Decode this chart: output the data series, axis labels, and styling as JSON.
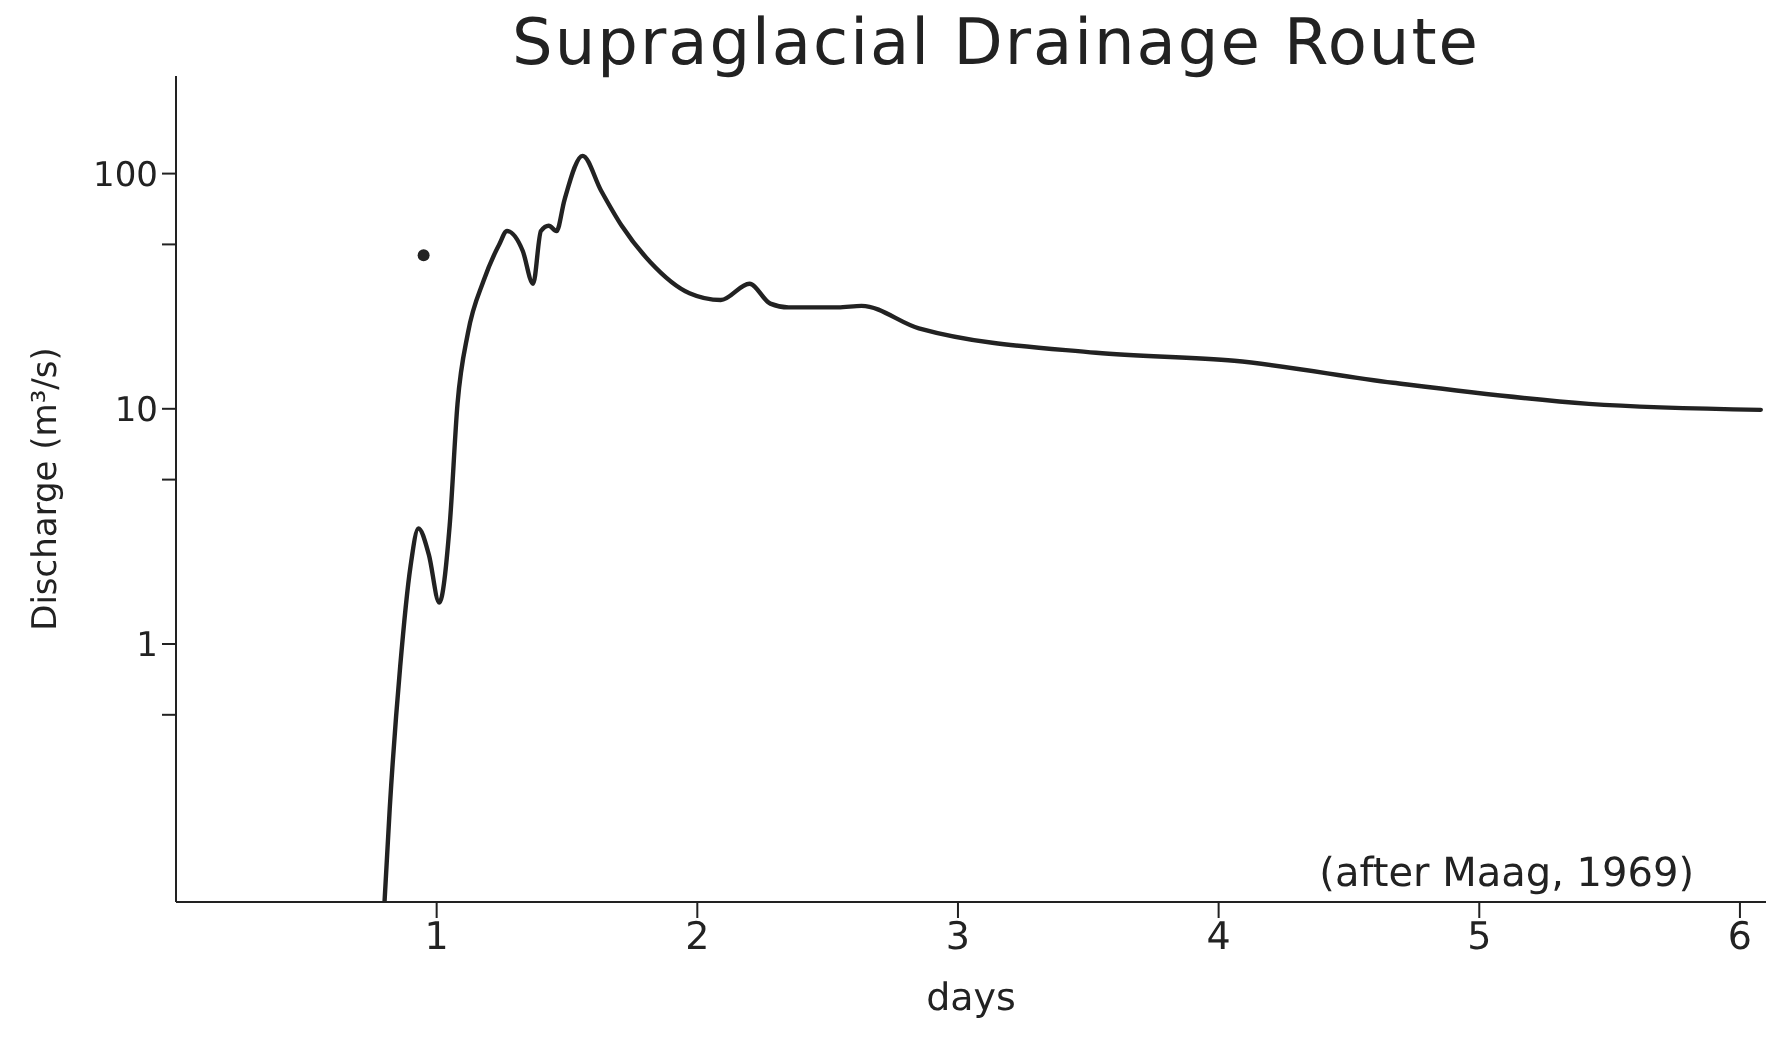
{
  "chart_data": {
    "type": "line",
    "title": "Supraglacial Drainage Route",
    "xlabel": "days",
    "ylabel": "Discharge (m³/s)",
    "annotations": [
      "(after Maag, 1969)"
    ],
    "log": "y",
    "grid": false,
    "legend": false,
    "marker": "none",
    "line_style": "solid",
    "xlim": [
      0,
      6.1
    ],
    "xticks": [
      1,
      2,
      3,
      4,
      5,
      6
    ],
    "ylim": [
      0.08,
      260
    ],
    "yticks": [
      {
        "value": 0.5,
        "label": null
      },
      1,
      {
        "value": 5,
        "label": null
      },
      10,
      {
        "value": 50,
        "label": null
      },
      100
    ],
    "series": [
      {
        "color": "#222222",
        "x": [
          0.8,
          0.82,
          0.86,
          0.9,
          0.93,
          0.97,
          1.01,
          1.05,
          1.08,
          1.12,
          1.18,
          1.24,
          1.27,
          1.33,
          1.37,
          1.4,
          1.43,
          1.46,
          1.49,
          1.56,
          1.63,
          1.71,
          1.82,
          1.97,
          2.09,
          2.2,
          2.28,
          2.35,
          2.54,
          2.63,
          2.85,
          3.53,
          4.06,
          4.67,
          5.42,
          6.08
        ],
        "values": [
          0.08,
          0.2,
          0.8,
          2.15,
          3.1,
          2.4,
          1.5,
          3.2,
          10.5,
          21,
          35,
          50,
          57,
          47,
          34,
          57,
          60,
          57,
          77,
          119,
          85,
          60,
          42,
          31,
          29,
          34,
          28,
          27,
          27,
          27.4,
          22,
          17.3,
          16,
          12.9,
          10.5,
          9.9
        ]
      },
      {
        "type": "scatter",
        "marker": "circle",
        "color": "#222222",
        "x": [
          0.95
        ],
        "values": [
          45
        ]
      }
    ]
  }
}
